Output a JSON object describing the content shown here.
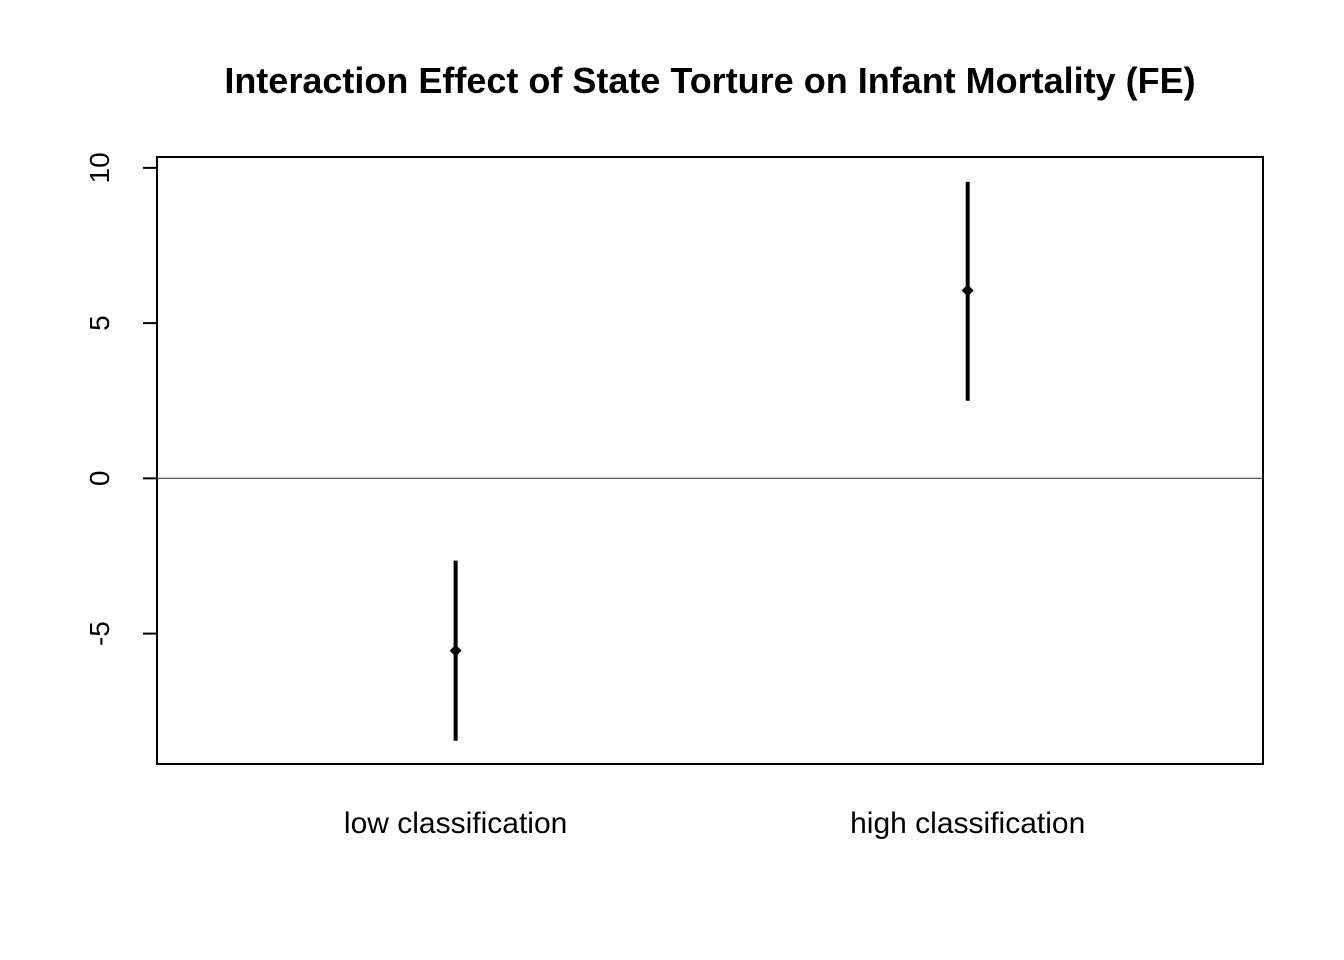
{
  "chart_data": {
    "type": "scatter",
    "title": "Interaction Effect of State Torture on Infant Mortality (FE)",
    "xlabel": "",
    "ylabel": "",
    "categories": [
      "low classification",
      "high classification"
    ],
    "points": [
      {
        "category": "low classification",
        "estimate": -5.55,
        "lower": -8.45,
        "upper": -2.65
      },
      {
        "category": "high classification",
        "estimate": 6.05,
        "lower": 2.5,
        "upper": 9.55
      }
    ],
    "yticks": [
      -5,
      0,
      5,
      10
    ],
    "ytick_labels": [
      "-5",
      "0",
      "5",
      "10"
    ],
    "ylim": [
      -9.2,
      10.35
    ],
    "reference_line": 0,
    "grid": false,
    "legend": "none",
    "colors": {
      "points": "#000000",
      "reference_line": "#555555",
      "frame": "#000000"
    }
  }
}
